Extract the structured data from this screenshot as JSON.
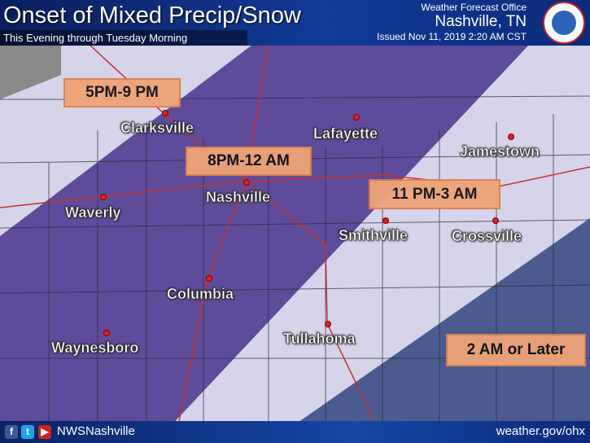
{
  "header": {
    "title": "Onset of Mixed Precip/Snow",
    "subtitle": "This Evening through Tuesday Morning",
    "office": "Weather Forecast Office",
    "location": "Nashville, TN",
    "issued": "Issued Nov 11, 2019 2:20 AM CST",
    "logo": "NOAA National Weather Service"
  },
  "zones": [
    {
      "label": "5PM-9 PM",
      "color": "#d6d4ea"
    },
    {
      "label": "8PM-12 AM",
      "color": "#5e4b9a"
    },
    {
      "label": "11 PM-3 AM",
      "color": "#d6d4ea"
    },
    {
      "label": "2 AM or Later",
      "color": "#4b5a8f"
    }
  ],
  "cities": [
    "Clarksville",
    "Lafayette",
    "Jamestown",
    "Nashville",
    "Waverly",
    "Smithville",
    "Crossville",
    "Columbia",
    "Tullahoma",
    "Waynesboro"
  ],
  "footer": {
    "icons": [
      "facebook-icon",
      "twitter-icon",
      "youtube-icon"
    ],
    "handle": "NWSNashville",
    "website": "weather.gov/ohx"
  }
}
